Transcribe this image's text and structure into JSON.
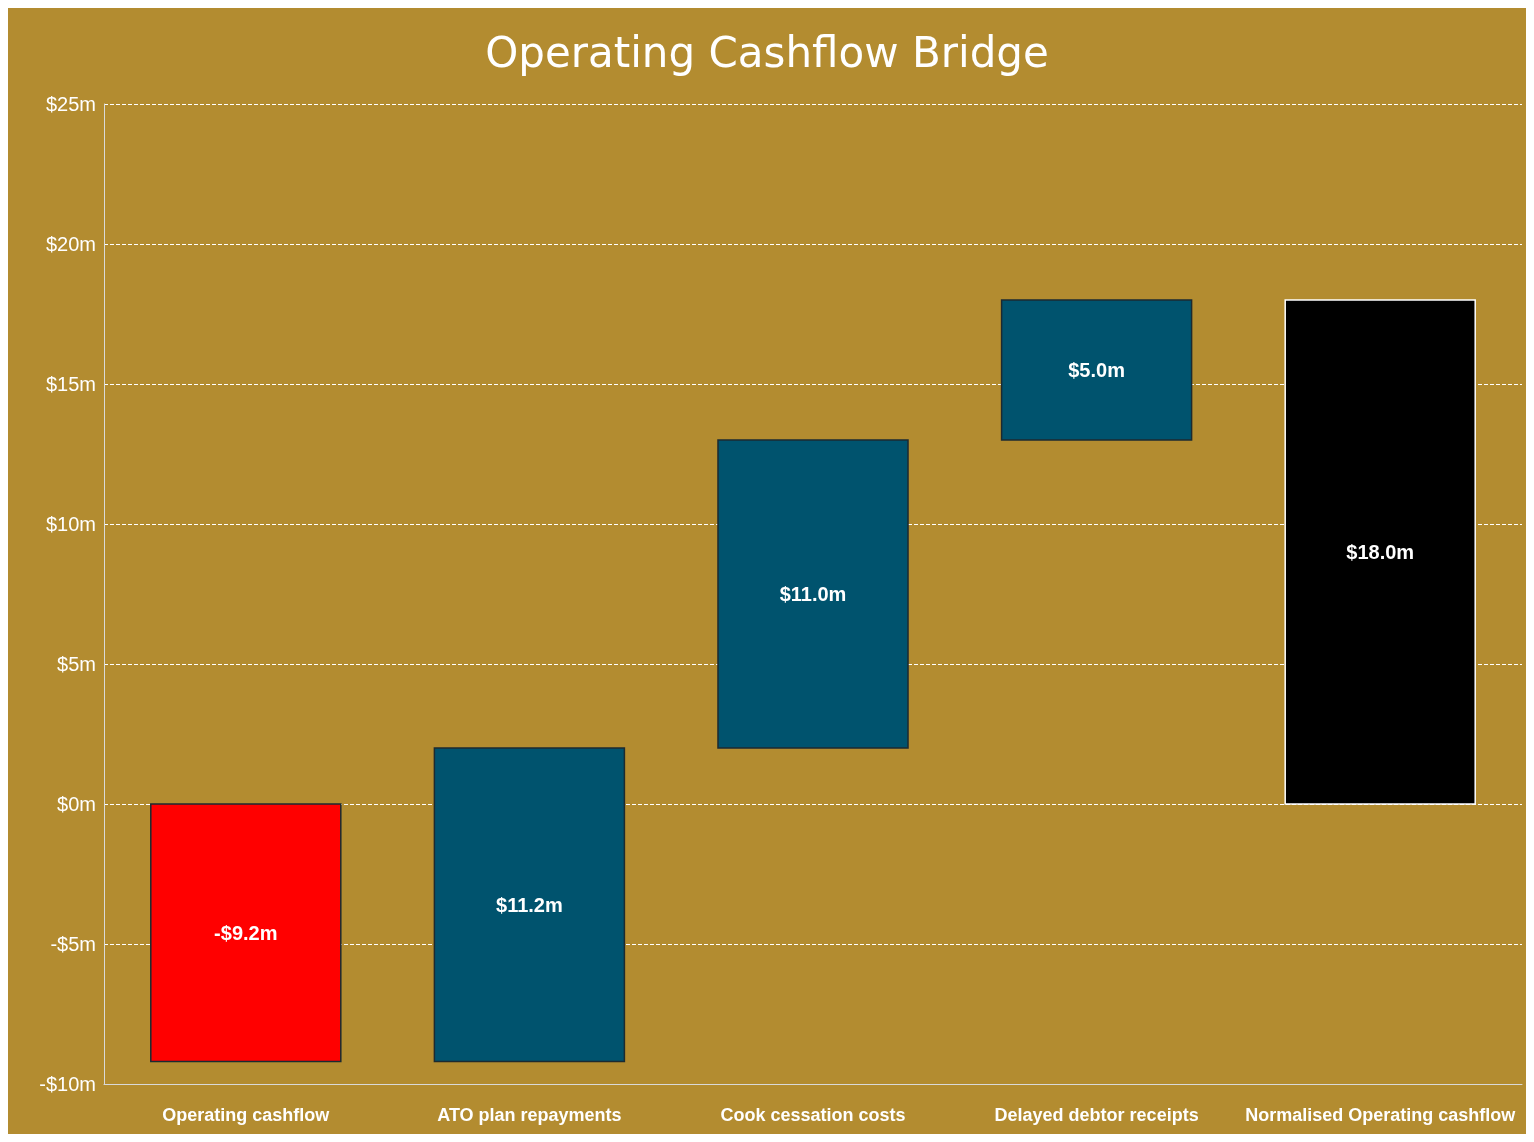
{
  "chart_data": {
    "type": "bar",
    "title": "Operating Cashflow Bridge",
    "categories": [
      "Operating cashflow",
      "ATO plan repayments",
      "Cook cessation costs",
      "Delayed debtor receipts",
      "Normalised Operating cashflow"
    ],
    "values": [
      -9.2,
      11.2,
      11.0,
      5.0,
      18.0
    ],
    "base": [
      0,
      -9.2,
      2.0,
      13.0,
      0
    ],
    "colors": [
      "#ff0000",
      "#00536e",
      "#00536e",
      "#00536e",
      "#000000"
    ],
    "value_labels": [
      "-$9.2m",
      "$11.2m",
      "$11.0m",
      "$5.0m",
      "$18.0m"
    ],
    "ylim": [
      -10,
      25
    ],
    "yticks": [
      {
        "value": -10,
        "label": "-$10m"
      },
      {
        "value": -5,
        "label": "-$5m"
      },
      {
        "value": 0,
        "label": "$0m"
      },
      {
        "value": 5,
        "label": "$5m"
      },
      {
        "value": 10,
        "label": "$10m"
      },
      {
        "value": 15,
        "label": "$15m"
      },
      {
        "value": 20,
        "label": "$20m"
      },
      {
        "value": 25,
        "label": "$25m"
      }
    ],
    "grid": true
  }
}
